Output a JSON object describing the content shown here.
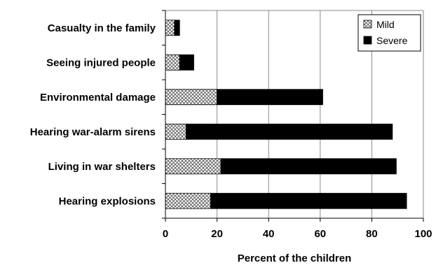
{
  "chart_data": {
    "type": "bar",
    "orientation": "horizontal",
    "stacked": true,
    "categories": [
      "Casualty in the family",
      "Seeing injured people",
      "Environmental damage",
      "Hearing war-alarm sirens",
      "Living in war shelters",
      "Hearing explosions"
    ],
    "series": [
      {
        "name": "Mild",
        "pattern": "crosshatch",
        "color": "#ffffff",
        "values": [
          3.5,
          5.5,
          20,
          8,
          21.5,
          17.5
        ]
      },
      {
        "name": "Severe",
        "pattern": "solid",
        "color": "#000000",
        "values": [
          2,
          5.5,
          41,
          80,
          68,
          76
        ]
      }
    ],
    "title": "",
    "xlabel": "Percent of the children",
    "ylabel": "",
    "xlim": [
      0,
      100
    ],
    "xticks": [
      0,
      20,
      40,
      60,
      80,
      100
    ],
    "grid": true,
    "legend_position": "top-right"
  }
}
